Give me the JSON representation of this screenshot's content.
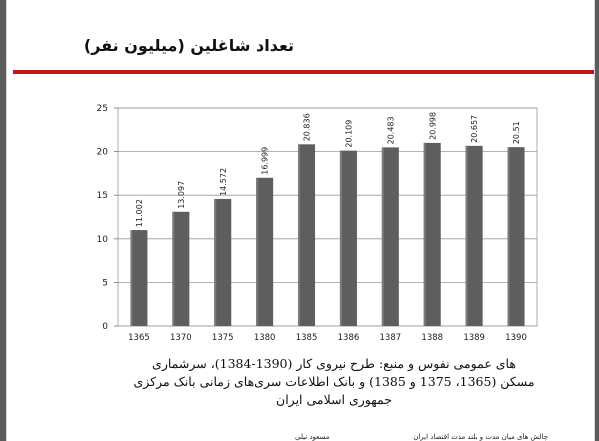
{
  "slide": {
    "title": "تعداد شاغلین (میلیون نفر)",
    "caption_lines": [
      "های عمومی نفوس و منبع: طرح نیروی کار (1390-1384)، سرشماری",
      "مسکن (1365، 1375 و 1385) و بانک اطلاعات سری‌های زمانی بانک مرکزی",
      "جمهوری اسلامی ایران"
    ],
    "footer_left": "مسعود نیلی",
    "footer_right": "چالش های میان مدت و بلند مدت اقتصاد ایران",
    "accent_color": "#c0141c"
  },
  "chart_data": {
    "type": "bar",
    "categories": [
      "1365",
      "1370",
      "1375",
      "1380",
      "1385",
      "1386",
      "1387",
      "1388",
      "1389",
      "1390"
    ],
    "values": [
      11.002,
      13.097,
      14.572,
      16.999,
      20.836,
      20.109,
      20.483,
      20.998,
      20.657,
      20.51
    ],
    "data_labels": [
      "11.002",
      "13.097",
      "14.572",
      "16.999",
      "20.836",
      "20.109",
      "20.483",
      "20.998",
      "20.657",
      "20.51"
    ],
    "ylim": [
      0,
      25
    ],
    "yticks": [
      0,
      5,
      10,
      15,
      20,
      25
    ],
    "grid": true,
    "bar_color": "#5e5e5e"
  }
}
